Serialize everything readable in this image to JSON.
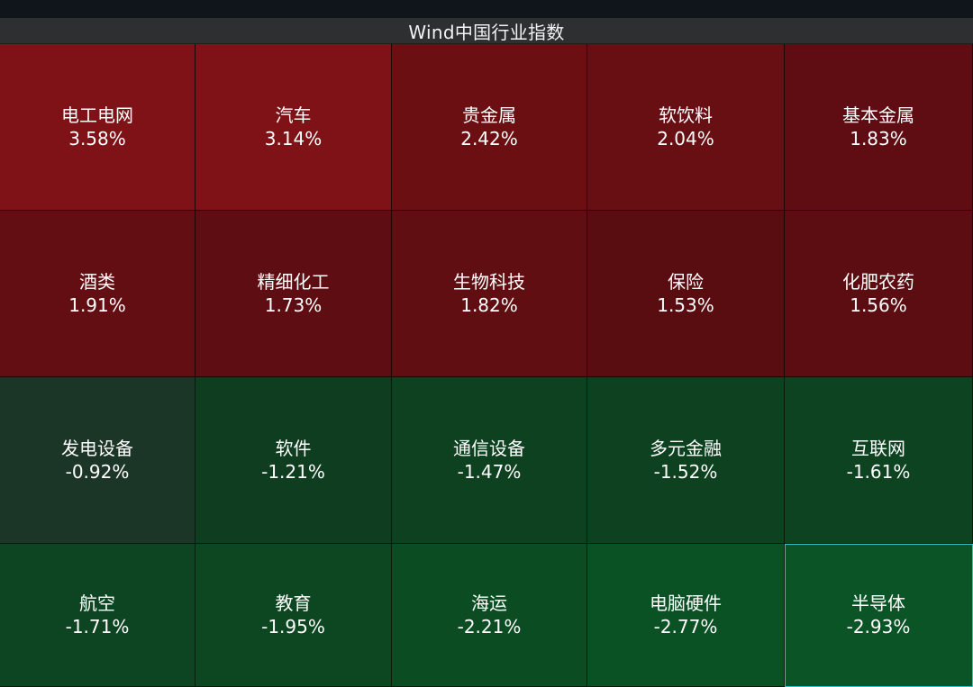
{
  "header": {
    "title": "Wind中国行业指数"
  },
  "tiles": [
    {
      "name": "电工电网",
      "change": "3.58%",
      "color": "#7e1216"
    },
    {
      "name": "汽车",
      "change": "3.14%",
      "color": "#7e1216"
    },
    {
      "name": "贵金属",
      "change": "2.42%",
      "color": "#6c0f13"
    },
    {
      "name": "软饮料",
      "change": "2.04%",
      "color": "#680f13"
    },
    {
      "name": "基本金属",
      "change": "1.83%",
      "color": "#5f0d12"
    },
    {
      "name": "酒类",
      "change": "1.91%",
      "color": "#630e12"
    },
    {
      "name": "精细化工",
      "change": "1.73%",
      "color": "#5e0e12"
    },
    {
      "name": "生物科技",
      "change": "1.82%",
      "color": "#610e12"
    },
    {
      "name": "保险",
      "change": "1.53%",
      "color": "#5a0d11"
    },
    {
      "name": "化肥农药",
      "change": "1.56%",
      "color": "#5b0d11"
    },
    {
      "name": "发电设备",
      "change": "-0.92%",
      "color": "#1b3626"
    },
    {
      "name": "软件",
      "change": "-1.21%",
      "color": "#0f3d20"
    },
    {
      "name": "通信设备",
      "change": "-1.47%",
      "color": "#0e4120"
    },
    {
      "name": "多元金融",
      "change": "-1.52%",
      "color": "#0e4120"
    },
    {
      "name": "互联网",
      "change": "-1.61%",
      "color": "#0d4321"
    },
    {
      "name": "航空",
      "change": "-1.71%",
      "color": "#0d4522"
    },
    {
      "name": "教育",
      "change": "-1.95%",
      "color": "#0c4721"
    },
    {
      "name": "海运",
      "change": "-2.21%",
      "color": "#0b4c23"
    },
    {
      "name": "电脑硬件",
      "change": "-2.77%",
      "color": "#0a5124"
    },
    {
      "name": "半导体",
      "change": "-2.93%",
      "color": "#0a5425"
    }
  ],
  "selected_tile": "半导体"
}
